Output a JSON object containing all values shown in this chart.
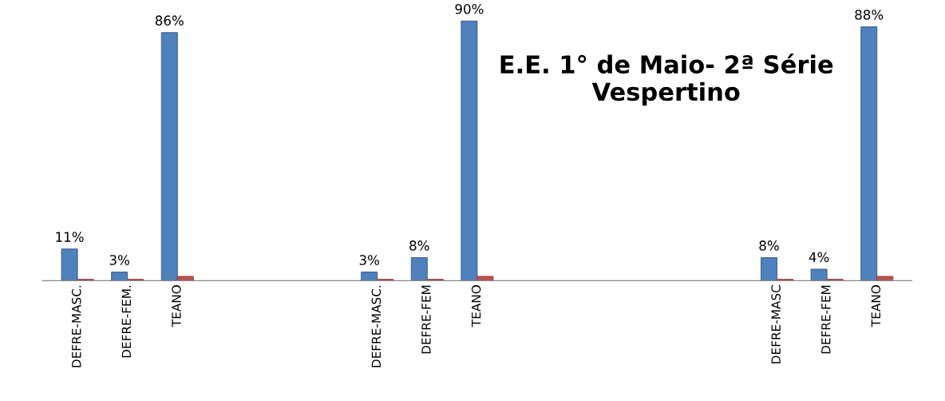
{
  "chart_data": {
    "type": "bar",
    "title": "E.E. 1° de Maio- 2ª Série\nVespertino",
    "tick_labels": "x",
    "grid": false,
    "legend": false,
    "categories": [
      "DEFRE-MASC.",
      "DEFRE-FEM.",
      "TEANO",
      null,
      null,
      null,
      "DEFRE-MASC.",
      "DEFRE-FEM",
      "TEANO",
      null,
      null,
      null,
      null,
      null,
      "DEFRE-MASC",
      "DEFRE-FEM",
      "TEANO"
    ],
    "series": [
      {
        "color": "#4f81bd",
        "values": [
          11,
          3,
          86,
          null,
          null,
          null,
          3,
          8,
          90,
          null,
          null,
          null,
          null,
          null,
          8,
          4,
          88
        ],
        "value_labels": [
          "11%",
          "3%",
          "86%",
          null,
          null,
          null,
          "3%",
          "8%",
          "90%",
          null,
          null,
          null,
          null,
          null,
          "8%",
          "4%",
          "88%"
        ]
      },
      {
        "color": "#c0504d",
        "values": [
          0.5,
          0.5,
          1.5,
          null,
          null,
          null,
          0.5,
          0.5,
          1.5,
          null,
          null,
          null,
          null,
          null,
          0.5,
          0.5,
          1.5
        ]
      }
    ]
  }
}
